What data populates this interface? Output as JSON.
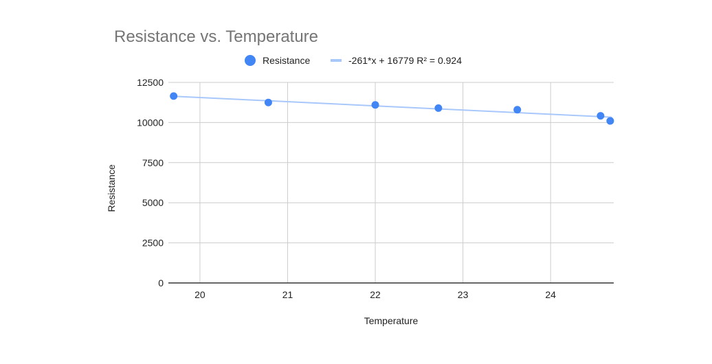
{
  "chart_data": {
    "type": "scatter",
    "title": "Resistance vs. Temperature",
    "xlabel": "Temperature",
    "ylabel": "Resistance",
    "xlim": [
      19.64,
      24.72
    ],
    "ylim": [
      0,
      12500
    ],
    "xticks": [
      20,
      21,
      22,
      23,
      24
    ],
    "yticks": [
      0,
      2500,
      5000,
      7500,
      10000,
      12500
    ],
    "grid": true,
    "legend_position": "top",
    "series": [
      {
        "name": "Resistance",
        "color": "#4285f4",
        "points": [
          {
            "x": 19.7,
            "y": 11650
          },
          {
            "x": 20.78,
            "y": 11250
          },
          {
            "x": 22.0,
            "y": 11100
          },
          {
            "x": 22.72,
            "y": 10900
          },
          {
            "x": 23.62,
            "y": 10800
          },
          {
            "x": 24.57,
            "y": 10420
          },
          {
            "x": 24.68,
            "y": 10100
          }
        ]
      }
    ],
    "trendline": {
      "label": "-261*x + 16779 R² = 0.924",
      "slope": -261,
      "intercept": 16779,
      "color": "#a8c7fa"
    }
  }
}
